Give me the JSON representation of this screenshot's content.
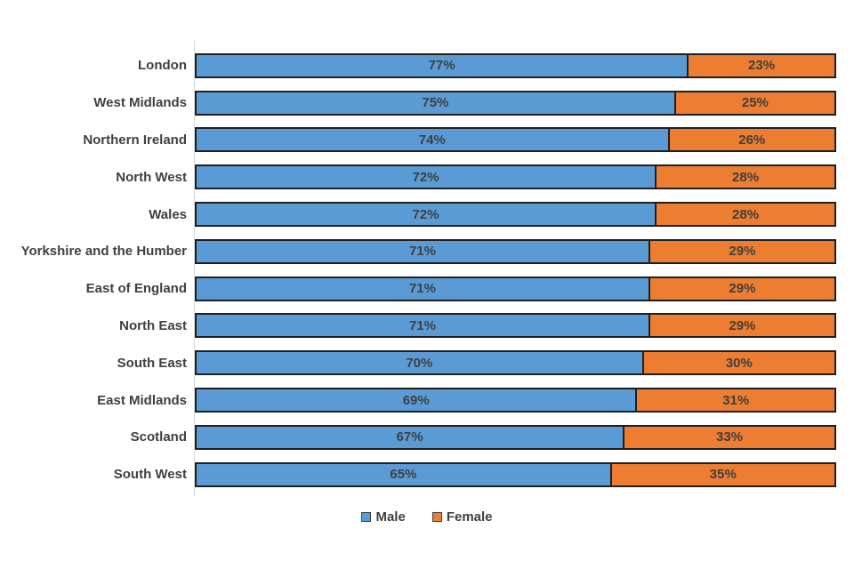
{
  "chart_data": {
    "type": "bar",
    "variant": "horizontal-100pct-stacked",
    "title": "",
    "xlabel": "",
    "ylabel": "",
    "xlim": [
      0,
      100
    ],
    "grid": false,
    "legend_position": "bottom",
    "value_suffix": "%",
    "categories": [
      "London",
      "West Midlands",
      "Northern Ireland",
      "North West",
      "Wales",
      "Yorkshire and the Humber",
      "East of England",
      "North East",
      "South East",
      "East Midlands",
      "Scotland",
      "South West"
    ],
    "series": [
      {
        "name": "Male",
        "color": "#5b9bd5",
        "values": [
          77,
          75,
          74,
          72,
          72,
          71,
          71,
          71,
          70,
          69,
          67,
          65
        ]
      },
      {
        "name": "Female",
        "color": "#ed7d31",
        "values": [
          23,
          25,
          26,
          28,
          28,
          29,
          29,
          29,
          30,
          31,
          33,
          35
        ]
      }
    ]
  },
  "legend": {
    "items": [
      {
        "label": "Male",
        "color": "#5b9bd5"
      },
      {
        "label": "Female",
        "color": "#ed7d31"
      }
    ]
  },
  "colors": {
    "male": "#5b9bd5",
    "female": "#ed7d31",
    "segment_border": "#1f1f1f",
    "label_text": "#404040",
    "axis_line": "#d9d9d9",
    "background": "#ffffff"
  }
}
